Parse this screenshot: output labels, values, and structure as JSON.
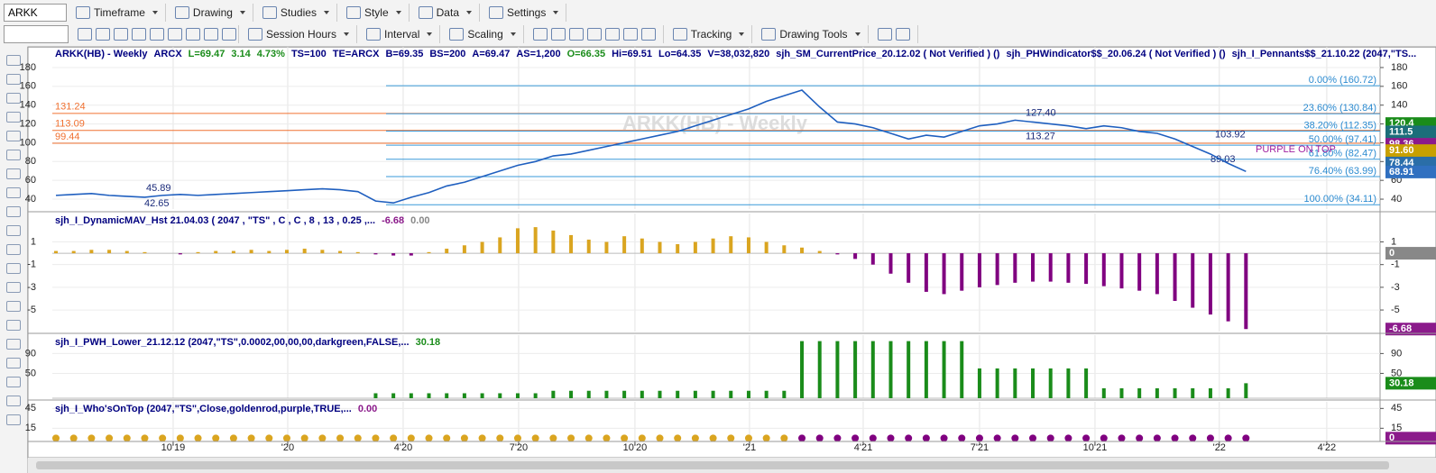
{
  "toolbar": {
    "symbol": "ARKK",
    "row1": [
      "Timeframe",
      "Drawing",
      "Studies",
      "Style",
      "Data",
      "Settings"
    ],
    "row2": [
      "Session Hours",
      "Interval",
      "Scaling",
      "Tracking",
      "Drawing Tools"
    ]
  },
  "chart_data": [
    {
      "type": "line",
      "title_items": [
        {
          "text": "ARKK(HB) - Weekly",
          "color": "#000080"
        },
        {
          "text": "ARCX",
          "color": "#000080"
        },
        {
          "text": "L=69.47",
          "color": "#1a8c1a"
        },
        {
          "text": "3.14",
          "color": "#1a8c1a"
        },
        {
          "text": "4.73%",
          "color": "#1a8c1a"
        },
        {
          "text": "TS=100",
          "color": "#000080"
        },
        {
          "text": "TE=ARCX",
          "color": "#000080"
        },
        {
          "text": "B=69.35",
          "color": "#000080"
        },
        {
          "text": "BS=200",
          "color": "#000080"
        },
        {
          "text": "A=69.47",
          "color": "#000080"
        },
        {
          "text": "AS=1,200",
          "color": "#000080"
        },
        {
          "text": "O=66.35",
          "color": "#1a8c1a"
        },
        {
          "text": "Hi=69.51",
          "color": "#000080"
        },
        {
          "text": "Lo=64.35",
          "color": "#000080"
        },
        {
          "text": "V=38,032,820",
          "color": "#000080"
        },
        {
          "text": "sjh_SM_CurrentPrice_20.12.02 ( Not Verified ) ()",
          "color": "#000080"
        },
        {
          "text": "sjh_PHWindicator$$_20.06.24 ( Not Verified ) ()",
          "color": "#000080"
        },
        {
          "text": "sjh_I_Pennants$$_21.10.22 (2047,\"TS...",
          "color": "#000080"
        }
      ],
      "watermark": "ARKK(HB) - Weekly",
      "xlim": [
        0,
        149
      ],
      "x": [
        0,
        2,
        4,
        6,
        8,
        10,
        12,
        14,
        16,
        18,
        20,
        22,
        24,
        26,
        28,
        30,
        32,
        34,
        36,
        38,
        40,
        42,
        44,
        46,
        48,
        50,
        52,
        54,
        56,
        58,
        60,
        62,
        64,
        66,
        68,
        70,
        72,
        74,
        76,
        78,
        80,
        82,
        84,
        86,
        88,
        90,
        92,
        94,
        96,
        98,
        100,
        102,
        104,
        106,
        108,
        110,
        112,
        114,
        116,
        118,
        120,
        122,
        124,
        126,
        128,
        130,
        132,
        134
      ],
      "values": [
        44,
        45,
        46,
        44,
        43,
        42,
        44,
        45,
        44,
        45,
        46,
        47,
        48,
        49,
        50,
        51,
        50,
        48,
        38,
        36,
        42,
        47,
        54,
        58,
        64,
        70,
        76,
        80,
        86,
        88,
        92,
        96,
        100,
        104,
        108,
        112,
        118,
        124,
        130,
        136,
        144,
        150,
        156,
        138,
        122,
        120,
        116,
        110,
        104,
        108,
        106,
        112,
        118,
        120,
        124,
        122,
        120,
        118,
        115,
        118,
        116,
        112,
        110,
        104,
        96,
        88,
        78,
        69.47
      ],
      "color": "#1f5fbf",
      "ylim": [
        29.5,
        202
      ],
      "yticks": [
        40,
        60,
        80,
        100,
        120,
        140,
        160,
        180
      ],
      "fib_levels": [
        {
          "value": 160.72,
          "label": "0.00% (160.72)"
        },
        {
          "value": 130.84,
          "label": "23.60% (130.84)"
        },
        {
          "value": 112.35,
          "label": "38.20% (112.35)"
        },
        {
          "value": 97.41,
          "label": "50.00% (97.41)"
        },
        {
          "value": 82.47,
          "label": "61.80% (82.47)"
        },
        {
          "value": 63.99,
          "label": "76.40% (63.99)"
        },
        {
          "value": 34.11,
          "label": "100.00% (34.11)"
        }
      ],
      "fib_color": "#3a9ad9",
      "levels": [
        131.24,
        113.09,
        99.44
      ],
      "level_color": "#f07030",
      "annotations": [
        45.89,
        42.65,
        {
          "value": 127.4,
          "label": "127.40"
        },
        113.27,
        103.92,
        89.03
      ],
      "note": "PURPLE ON TOP",
      "price_tags": [
        {
          "value": 120.4,
          "label": "120.4",
          "color": "#1a8c1a"
        },
        {
          "value": 111.5,
          "label": "111.5",
          "color": "#1b6e7a"
        },
        {
          "value": 98.36,
          "label": "98.36",
          "color": "#8b1a8b"
        },
        {
          "value": 91.6,
          "label": "91.60",
          "color": "#c8a000"
        },
        {
          "value": 78.44,
          "label": "78.44",
          "color": "#2a6ea8"
        },
        {
          "value": 68.91,
          "label": "68.91",
          "color": "#3070c0"
        }
      ]
    },
    {
      "type": "bar",
      "title_items": [
        {
          "text": "sjh_I_DynamicMAV_Hst 21.04.03 ( 2047 , \"TS\" , C , C ,  8 , 13 , 0.25 ,...",
          "color": "#000080"
        },
        {
          "text": "-6.68",
          "color": "#8b1a8b"
        },
        {
          "text": "0.00",
          "color": "#888888"
        }
      ],
      "xlim": [
        0,
        149
      ],
      "x": [
        0,
        2,
        4,
        6,
        8,
        10,
        12,
        14,
        16,
        18,
        20,
        22,
        24,
        26,
        28,
        30,
        32,
        34,
        36,
        38,
        40,
        42,
        44,
        46,
        48,
        50,
        52,
        54,
        56,
        58,
        60,
        62,
        64,
        66,
        68,
        70,
        72,
        74,
        76,
        78,
        80,
        82,
        84,
        86,
        88,
        90,
        92,
        94,
        96,
        98,
        100,
        102,
        104,
        106,
        108,
        110,
        112,
        114,
        116,
        118,
        120,
        122,
        124,
        126,
        128,
        130,
        132,
        134
      ],
      "values": [
        0.2,
        0.2,
        0.3,
        0.3,
        0.2,
        0.1,
        0.0,
        -0.1,
        0.1,
        0.2,
        0.2,
        0.3,
        0.2,
        0.3,
        0.4,
        0.3,
        0.2,
        0.1,
        -0.1,
        -0.2,
        -0.2,
        0.1,
        0.4,
        0.7,
        1.0,
        1.4,
        2.2,
        2.3,
        2.0,
        1.6,
        1.2,
        1.0,
        1.5,
        1.3,
        1.0,
        0.8,
        1.0,
        1.3,
        1.5,
        1.4,
        1.0,
        0.7,
        0.5,
        0.2,
        -0.1,
        -0.5,
        -1.0,
        -1.8,
        -2.6,
        -3.4,
        -3.6,
        -3.3,
        -3.0,
        -2.8,
        -2.6,
        -2.5,
        -2.5,
        -2.6,
        -2.7,
        -2.9,
        -3.1,
        -3.3,
        -3.6,
        -4.2,
        -4.8,
        -5.4,
        -6.0,
        -6.68
      ],
      "pos_color": "#daa520",
      "neg_color": "#800080",
      "ylim": [
        -6.9,
        3.5
      ],
      "yticks": [
        1,
        -1,
        -3,
        -5
      ],
      "price_tags": [
        {
          "value": 0,
          "color": "#888888"
        },
        {
          "value": -6.68,
          "color": "#8b1a8b"
        }
      ]
    },
    {
      "type": "bar",
      "title_items": [
        {
          "text": "sjh_I_PWH_Lower_21.12.12 (2047,\"TS\",0.0002,00,00,00,darkgreen,FALSE,...",
          "color": "#000080"
        },
        {
          "text": "30.18",
          "color": "#1a8c1a"
        }
      ],
      "xlim": [
        0,
        149
      ],
      "x": [
        0,
        2,
        4,
        6,
        8,
        10,
        12,
        14,
        16,
        18,
        20,
        22,
        24,
        26,
        28,
        30,
        32,
        34,
        36,
        38,
        40,
        42,
        44,
        46,
        48,
        50,
        52,
        54,
        56,
        58,
        60,
        62,
        64,
        66,
        68,
        70,
        72,
        74,
        76,
        78,
        80,
        82,
        84,
        86,
        88,
        90,
        92,
        94,
        96,
        98,
        100,
        102,
        104,
        106,
        108,
        110,
        112,
        114,
        116,
        118,
        120,
        122,
        124,
        126,
        128,
        130,
        132,
        134
      ],
      "values": [
        0,
        0,
        0,
        0,
        0,
        0,
        0,
        0,
        0,
        0,
        0,
        0,
        0,
        0,
        0,
        0,
        0,
        0,
        10,
        10,
        10,
        10,
        10,
        10,
        10,
        10,
        10,
        10,
        15,
        15,
        15,
        15,
        15,
        15,
        15,
        15,
        15,
        15,
        15,
        15,
        15,
        15,
        115,
        115,
        115,
        115,
        115,
        115,
        115,
        115,
        115,
        115,
        60,
        60,
        60,
        60,
        60,
        60,
        60,
        20,
        20,
        20,
        20,
        20,
        20,
        20,
        20,
        30.18
      ],
      "pos_color": "#1a8c1a",
      "neg_color": "#1a8c1a",
      "ylim": [
        0,
        127
      ],
      "yticks": [
        50,
        90
      ],
      "price_tags": [
        {
          "value": 30.18,
          "color": "#1a8c1a"
        }
      ]
    },
    {
      "type": "scatter",
      "title_items": [
        {
          "text": "sjh_I_Who'sOnTop (2047,\"TS\",Close,goldenrod,purple,TRUE,...",
          "color": "#000080"
        },
        {
          "text": "0.00",
          "color": "#8b1a8b"
        }
      ],
      "xlim": [
        0,
        149
      ],
      "series": [
        {
          "color": "#daa520",
          "x": [
            0,
            2,
            4,
            6,
            8,
            10,
            12,
            14,
            16,
            18,
            20,
            22,
            24,
            26,
            28,
            30,
            32,
            34,
            36,
            38,
            40,
            42,
            44,
            46,
            48,
            50,
            52,
            54,
            56,
            58,
            60,
            62,
            64,
            66,
            68,
            70,
            72,
            74,
            76,
            78,
            80,
            82
          ],
          "values": [
            0,
            0,
            0,
            0,
            0,
            0,
            0,
            0,
            0,
            0,
            0,
            0,
            0,
            0,
            0,
            0,
            0,
            0,
            0,
            0,
            0,
            0,
            0,
            0,
            0,
            0,
            0,
            0,
            0,
            0,
            0,
            0,
            0,
            0,
            0,
            0,
            0,
            0,
            0,
            0,
            0,
            0
          ]
        },
        {
          "color": "#800080",
          "x": [
            84,
            86,
            88,
            90,
            92,
            94,
            96,
            98,
            100,
            102,
            104,
            106,
            108,
            110,
            112,
            114,
            116,
            118,
            120,
            122,
            124,
            126,
            128,
            130,
            132,
            134
          ],
          "values": [
            0,
            0,
            0,
            0,
            0,
            0,
            0,
            0,
            0,
            0,
            0,
            0,
            0,
            0,
            0,
            0,
            0,
            0,
            0,
            0,
            0,
            0,
            0,
            0,
            0,
            0
          ]
        }
      ],
      "ylim": [
        -5,
        55
      ],
      "yticks": [
        15,
        45
      ],
      "price_tags": [
        {
          "value": 0,
          "color": "#8b1a8b"
        }
      ],
      "xticks": [
        {
          "value": 13.2,
          "label": "10'19"
        },
        {
          "value": 26.1,
          "label": "'20"
        },
        {
          "value": 39.1,
          "label": "4'20"
        },
        {
          "value": 52.1,
          "label": "7'20"
        },
        {
          "value": 65.2,
          "label": "10'20"
        },
        {
          "value": 78.1,
          "label": "'21"
        },
        {
          "value": 90.9,
          "label": "4'21"
        },
        {
          "value": 104.0,
          "label": "7'21"
        },
        {
          "value": 117.0,
          "label": "10'21"
        },
        {
          "value": 131.0,
          "label": "'22"
        },
        {
          "value": 143.1,
          "label": "4'22"
        }
      ]
    }
  ]
}
